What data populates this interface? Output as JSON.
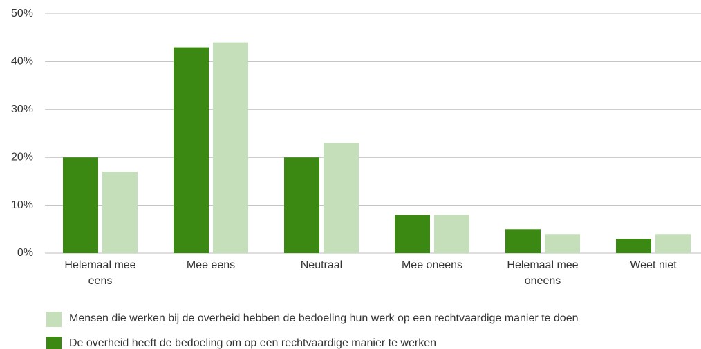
{
  "chart_data": {
    "type": "bar",
    "categories": [
      "Helemaal mee eens",
      "Mee eens",
      "Neutraal",
      "Mee oneens",
      "Helemaal mee oneens",
      "Weet niet"
    ],
    "series": [
      {
        "name": "De overheid heeft de bedoeling om op een rechtvaardige manier te werken",
        "color": "#3b8912",
        "values": [
          20,
          43,
          20,
          8,
          5,
          3
        ]
      },
      {
        "name": "Mensen die werken bij de overheid hebben de bedoeling hun werk op een rechtvaardige manier te doen",
        "color": "#c5dfbb",
        "values": [
          17,
          44,
          23,
          8,
          4,
          4
        ]
      }
    ],
    "ylim": [
      0,
      50
    ],
    "yticks": [
      {
        "value": 0,
        "label": "0%"
      },
      {
        "value": 10,
        "label": "10%"
      },
      {
        "value": 20,
        "label": "20%"
      },
      {
        "value": 30,
        "label": "30%"
      },
      {
        "value": 40,
        "label": "40%"
      },
      {
        "value": 50,
        "label": "50%"
      }
    ],
    "grid": true
  }
}
